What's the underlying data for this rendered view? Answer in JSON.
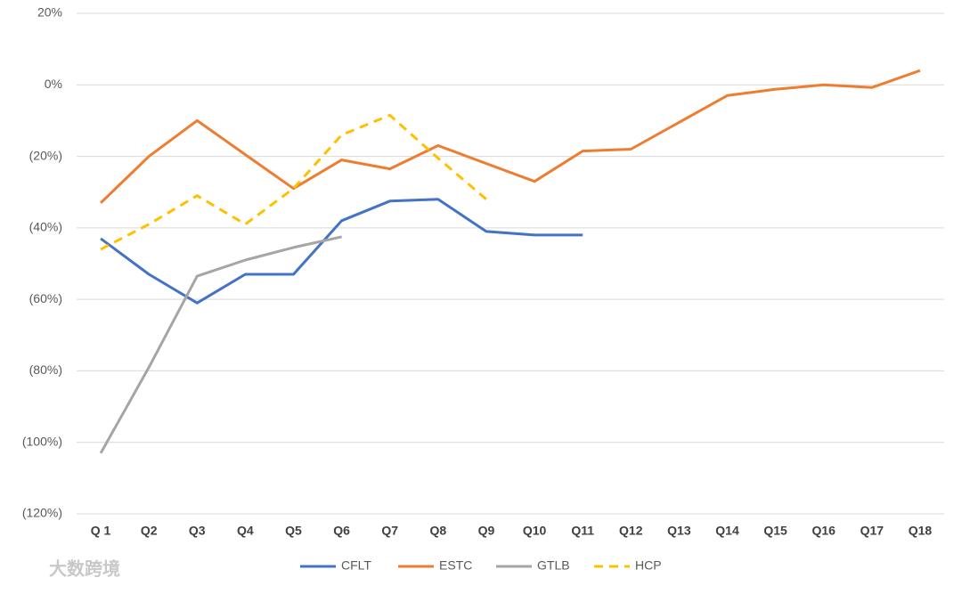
{
  "chart_data": {
    "type": "line",
    "categories": [
      "Q 1",
      "Q2",
      "Q3",
      "Q4",
      "Q5",
      "Q6",
      "Q7",
      "Q8",
      "Q9",
      "Q10",
      "Q11",
      "Q12",
      "Q13",
      "Q14",
      "Q15",
      "Q16",
      "Q17",
      "Q18"
    ],
    "series": [
      {
        "name": "CFLT",
        "color": "#4472c4",
        "dashed": false,
        "values": [
          -43,
          -53,
          -61,
          -53,
          -53,
          -38,
          -32.5,
          -32,
          -41,
          -42,
          -42,
          null,
          null,
          null,
          null,
          null,
          null,
          null
        ]
      },
      {
        "name": "ESTC",
        "color": "#ed7d31",
        "dashed": false,
        "values": [
          -33,
          -20,
          -10,
          -19.5,
          -29,
          -21,
          -23.5,
          -17,
          -22,
          -27,
          -18.5,
          -18,
          -10.5,
          -3,
          -1.25,
          0,
          -0.75,
          4
        ]
      },
      {
        "name": "GTLB",
        "color": "#a5a5a5",
        "dashed": false,
        "values": [
          -103,
          -79,
          -53.5,
          -49,
          -45.5,
          -42.5,
          null,
          null,
          null,
          null,
          null,
          null,
          null,
          null,
          null,
          null,
          null,
          null
        ]
      },
      {
        "name": "HCP",
        "color": "#ffc000",
        "dashed": true,
        "values": [
          -46,
          -39,
          -31,
          -39,
          -29,
          -14,
          -8.5,
          -20.5,
          -32,
          null,
          null,
          null,
          null,
          null,
          null,
          null,
          null,
          null
        ]
      }
    ],
    "ylim": [
      -120,
      20
    ],
    "yticks": [
      {
        "value": -120,
        "label": "(120%)"
      },
      {
        "value": -100,
        "label": "(100%)"
      },
      {
        "value": -80,
        "label": "(80%)"
      },
      {
        "value": -60,
        "label": "(60%)"
      },
      {
        "value": -40,
        "label": "(40%)"
      },
      {
        "value": -20,
        "label": "(20%)"
      },
      {
        "value": 0,
        "label": "0%"
      },
      {
        "value": 20,
        "label": "20%"
      }
    ],
    "grid": true,
    "legend": "bottom",
    "watermark": "大数跨境"
  }
}
